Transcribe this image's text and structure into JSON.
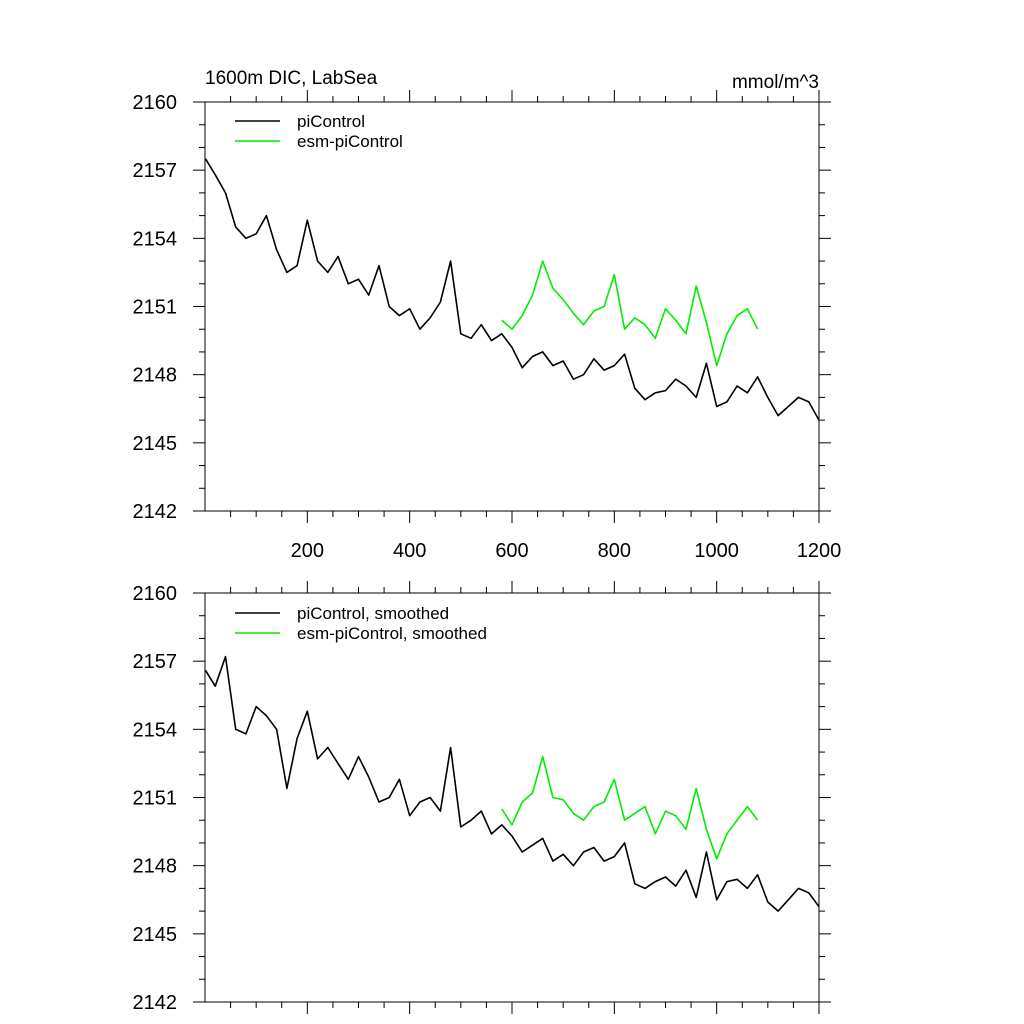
{
  "chart_data": [
    {
      "type": "line",
      "title": "1600m DIC, LabSea",
      "units": "mmol/m^3",
      "xlim": [
        0,
        1200
      ],
      "ylim": [
        2142,
        2160
      ],
      "yticks": [
        "2142",
        "2145",
        "2148",
        "2151",
        "2154",
        "2157",
        "2160"
      ],
      "xticks": [
        "200",
        "400",
        "600",
        "800",
        "1000",
        "1200"
      ],
      "legend_placement": "top-left",
      "series": [
        {
          "name": "piControl",
          "color": "#000000",
          "x": [
            1,
            20,
            40,
            60,
            80,
            100,
            120,
            140,
            160,
            180,
            200,
            220,
            240,
            260,
            280,
            300,
            320,
            340,
            360,
            380,
            400,
            420,
            440,
            460,
            480,
            500,
            520,
            540,
            560,
            580,
            600,
            620,
            640,
            660,
            680,
            700,
            720,
            740,
            760,
            780,
            800,
            820,
            840,
            860,
            880,
            900,
            920,
            940,
            960,
            980,
            1000,
            1020,
            1040,
            1060,
            1080,
            1100,
            1120,
            1140,
            1160,
            1180,
            1200
          ],
          "y": [
            2157.5,
            2156.8,
            2156.0,
            2154.5,
            2154.0,
            2154.2,
            2155.0,
            2153.5,
            2152.5,
            2152.8,
            2154.8,
            2153.0,
            2152.5,
            2153.2,
            2152.0,
            2152.2,
            2151.5,
            2152.8,
            2151.0,
            2150.6,
            2150.9,
            2150.0,
            2150.5,
            2151.2,
            2153.0,
            2149.8,
            2149.6,
            2150.2,
            2149.5,
            2149.8,
            2149.2,
            2148.3,
            2148.8,
            2149.0,
            2148.4,
            2148.6,
            2147.8,
            2148.0,
            2148.7,
            2148.2,
            2148.4,
            2148.9,
            2147.4,
            2146.9,
            2147.2,
            2147.3,
            2147.8,
            2147.5,
            2147.0,
            2148.5,
            2146.6,
            2146.8,
            2147.5,
            2147.2,
            2147.9,
            2147.0,
            2146.2,
            2146.6,
            2147.0,
            2146.8,
            2146.0
          ]
        },
        {
          "name": "esm-piControl",
          "color": "#00ee00",
          "x": [
            580,
            600,
            620,
            640,
            660,
            680,
            700,
            720,
            740,
            760,
            780,
            800,
            820,
            840,
            860,
            880,
            900,
            920,
            940,
            960,
            980,
            1000,
            1020,
            1040,
            1060,
            1080
          ],
          "y": [
            2150.4,
            2150.0,
            2150.6,
            2151.5,
            2153.0,
            2151.8,
            2151.3,
            2150.7,
            2150.2,
            2150.8,
            2151.0,
            2152.4,
            2150.0,
            2150.5,
            2150.2,
            2149.6,
            2150.9,
            2150.4,
            2149.8,
            2151.9,
            2150.3,
            2148.4,
            2149.8,
            2150.6,
            2150.9,
            2150.0
          ]
        }
      ]
    },
    {
      "type": "line",
      "xlim": [
        0,
        1200
      ],
      "ylim": [
        2142,
        2160
      ],
      "yticks": [
        "2142",
        "2145",
        "2148",
        "2151",
        "2154",
        "2157",
        "2160"
      ],
      "legend_placement": "top-left",
      "series": [
        {
          "name": "piControl, smoothed",
          "color": "#000000",
          "x": [
            1,
            20,
            40,
            60,
            80,
            100,
            120,
            140,
            160,
            180,
            200,
            220,
            240,
            260,
            280,
            300,
            320,
            340,
            360,
            380,
            400,
            420,
            440,
            460,
            480,
            500,
            520,
            540,
            560,
            580,
            600,
            620,
            640,
            660,
            680,
            700,
            720,
            740,
            760,
            780,
            800,
            820,
            840,
            860,
            880,
            900,
            920,
            940,
            960,
            980,
            1000,
            1020,
            1040,
            1060,
            1080,
            1100,
            1120,
            1140,
            1160,
            1180,
            1200
          ],
          "y": [
            2156.6,
            2155.9,
            2157.2,
            2154.0,
            2153.8,
            2155.0,
            2154.6,
            2154.0,
            2151.4,
            2153.6,
            2154.8,
            2152.7,
            2153.2,
            2152.5,
            2151.8,
            2152.8,
            2151.9,
            2150.8,
            2151.0,
            2151.8,
            2150.2,
            2150.8,
            2151.0,
            2150.4,
            2153.2,
            2149.7,
            2150.0,
            2150.4,
            2149.4,
            2149.8,
            2149.3,
            2148.6,
            2148.9,
            2149.2,
            2148.2,
            2148.5,
            2148.0,
            2148.6,
            2148.8,
            2148.2,
            2148.4,
            2149.0,
            2147.2,
            2147.0,
            2147.3,
            2147.5,
            2147.1,
            2147.8,
            2146.6,
            2148.6,
            2146.5,
            2147.3,
            2147.4,
            2147.0,
            2147.6,
            2146.4,
            2146.0,
            2146.5,
            2147.0,
            2146.8,
            2146.2
          ]
        },
        {
          "name": "esm-piControl, smoothed",
          "color": "#00ee00",
          "x": [
            580,
            600,
            620,
            640,
            660,
            680,
            700,
            720,
            740,
            760,
            780,
            800,
            820,
            840,
            860,
            880,
            900,
            920,
            940,
            960,
            980,
            1000,
            1020,
            1040,
            1060,
            1080
          ],
          "y": [
            2150.5,
            2149.8,
            2150.8,
            2151.2,
            2152.8,
            2151.0,
            2150.9,
            2150.3,
            2150.0,
            2150.6,
            2150.8,
            2151.8,
            2150.0,
            2150.3,
            2150.6,
            2149.4,
            2150.4,
            2150.2,
            2149.6,
            2151.4,
            2149.6,
            2148.3,
            2149.4,
            2150.0,
            2150.6,
            2150.0
          ]
        }
      ]
    }
  ]
}
